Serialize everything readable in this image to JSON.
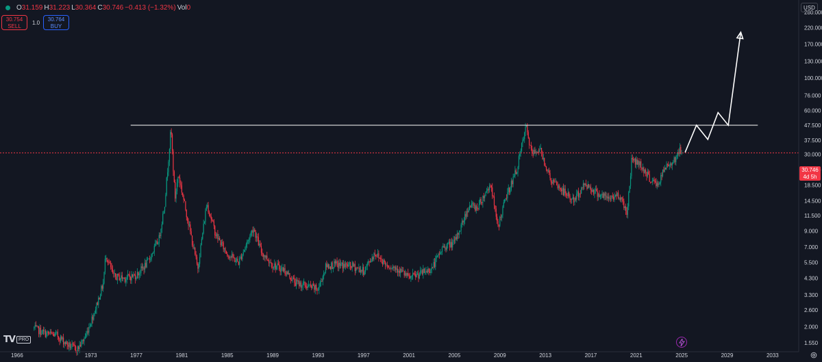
{
  "header": {
    "o_label": "O",
    "o_value": "31.159",
    "h_label": "H",
    "h_value": "31.223",
    "l_label": "L",
    "l_value": "30.364",
    "c_label": "C",
    "c_value": "30.746",
    "change": "−0.413 (−1.32%)",
    "vol_label": "Vol",
    "vol_value": "0"
  },
  "trade": {
    "sell_price": "30.754",
    "sell_label": "SELL",
    "quantity": "1.0",
    "buy_price": "30.764",
    "buy_label": "BUY"
  },
  "currency": "USD",
  "last_price": {
    "value": "30.746",
    "countdown": "4d 5h",
    "color": "#f23645"
  },
  "brand": {
    "logo_text": "TV",
    "tier": "PRO"
  },
  "colors": {
    "background": "#131722",
    "up": "#089981",
    "down": "#f23645",
    "line": "#ffffff",
    "text": "#d1d4dc"
  },
  "chart_data": {
    "type": "candlestick",
    "scale": "log",
    "y_ticks": [
      280,
      220,
      170,
      130,
      100,
      76,
      60,
      47.5,
      37.5,
      30,
      23.5,
      18.5,
      14.5,
      11.5,
      9,
      7,
      5.5,
      4.3,
      3.3,
      2.6,
      2,
      1.55
    ],
    "y_tick_labels": [
      "280.000",
      "220.000",
      "170.000",
      "130.000",
      "100.000",
      "76.000",
      "60.000",
      "47.500",
      "37.500",
      "30.000",
      "23.500",
      "18.500",
      "14.500",
      "11.500",
      "9.000",
      "7.000",
      "5.500",
      "4.300",
      "3.300",
      "2.600",
      "2.000",
      "1.550"
    ],
    "x_ticks": [
      "1966",
      "1973",
      "1977",
      "1981",
      "1985",
      "1989",
      "1993",
      "1997",
      "2001",
      "2005",
      "2009",
      "2013",
      "2017",
      "2021",
      "2025",
      "2029",
      "2033"
    ],
    "x_tick_years": [
      1966.5,
      1973,
      1977,
      1981,
      1985,
      1989,
      1993,
      1997,
      2001,
      2005,
      2009,
      2013,
      2017,
      2021,
      2025,
      2029,
      2033
    ],
    "ylim": [
      1.35,
      340
    ],
    "xlim": [
      1965,
      2035.3
    ],
    "last_price": 30.746,
    "price_path": [
      [
        1968.0,
        1.95
      ],
      [
        1969.0,
        1.8
      ],
      [
        1970.0,
        1.75
      ],
      [
        1971.0,
        1.5
      ],
      [
        1971.8,
        1.4
      ],
      [
        1972.5,
        1.7
      ],
      [
        1973.5,
        2.8
      ],
      [
        1974.1,
        4.0
      ],
      [
        1974.3,
        6.3
      ],
      [
        1975.0,
        4.4
      ],
      [
        1976.0,
        4.3
      ],
      [
        1977.0,
        4.5
      ],
      [
        1978.0,
        5.5
      ],
      [
        1979.0,
        8.0
      ],
      [
        1979.5,
        14
      ],
      [
        1980.05,
        45
      ],
      [
        1980.4,
        15
      ],
      [
        1980.7,
        22
      ],
      [
        1981.5,
        11
      ],
      [
        1982.4,
        5.0
      ],
      [
        1983.2,
        14.0
      ],
      [
        1984.0,
        8.5
      ],
      [
        1985.0,
        6.3
      ],
      [
        1986.0,
        5.5
      ],
      [
        1987.3,
        9.5
      ],
      [
        1988.0,
        6.5
      ],
      [
        1989.0,
        5.3
      ],
      [
        1990.0,
        4.9
      ],
      [
        1991.0,
        4.0
      ],
      [
        1992.0,
        3.8
      ],
      [
        1993.0,
        3.6
      ],
      [
        1993.7,
        5.2
      ],
      [
        1994.5,
        5.3
      ],
      [
        1996.0,
        5.2
      ],
      [
        1997.0,
        4.8
      ],
      [
        1998.0,
        6.4
      ],
      [
        1999.0,
        5.3
      ],
      [
        2000.0,
        5.0
      ],
      [
        2001.0,
        4.3
      ],
      [
        2002.0,
        4.6
      ],
      [
        2003.0,
        5.0
      ],
      [
        2004.0,
        7.0
      ],
      [
        2005.0,
        7.5
      ],
      [
        2006.3,
        13.5
      ],
      [
        2007.0,
        13.0
      ],
      [
        2008.2,
        19.0
      ],
      [
        2008.8,
        9.5
      ],
      [
        2009.5,
        15.0
      ],
      [
        2010.5,
        24.0
      ],
      [
        2011.3,
        46.5
      ],
      [
        2011.8,
        30.0
      ],
      [
        2012.5,
        33.0
      ],
      [
        2013.5,
        20.0
      ],
      [
        2014.5,
        17.0
      ],
      [
        2015.5,
        14.5
      ],
      [
        2016.5,
        19.0
      ],
      [
        2017.5,
        16.5
      ],
      [
        2018.5,
        15.0
      ],
      [
        2019.5,
        16.0
      ],
      [
        2020.2,
        12.0
      ],
      [
        2020.6,
        28.0
      ],
      [
        2021.3,
        26.0
      ],
      [
        2022.3,
        20.0
      ],
      [
        2022.9,
        18.5
      ],
      [
        2023.5,
        24.0
      ],
      [
        2024.4,
        28.0
      ],
      [
        2024.8,
        32.0
      ],
      [
        2025.0,
        30.746
      ]
    ],
    "resistance_line": {
      "y": 47.5,
      "x_from": 1976.5,
      "x_to": 2031.7
    },
    "projection_path": [
      [
        2025.3,
        31.0
      ],
      [
        2026.3,
        47.5
      ],
      [
        2027.3,
        38.0
      ],
      [
        2028.2,
        58.0
      ],
      [
        2029.1,
        47.5
      ],
      [
        2030.2,
        205.0
      ]
    ]
  }
}
